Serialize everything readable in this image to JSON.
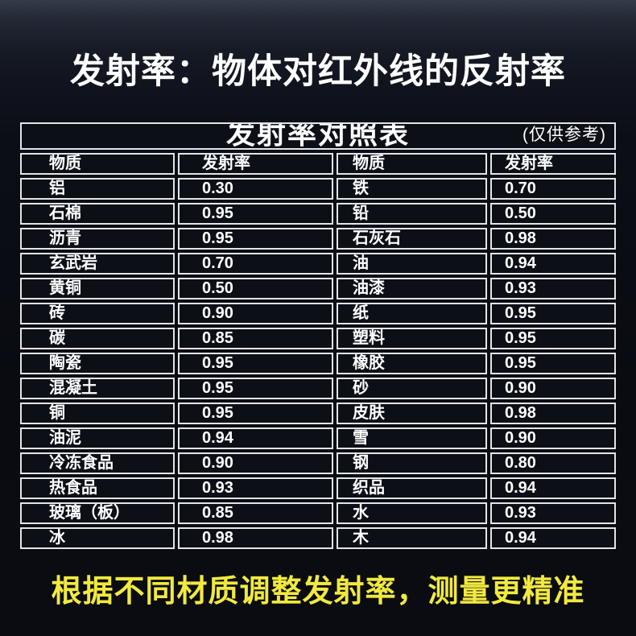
{
  "header": {
    "title": "发射率：物体对红外线的反射率"
  },
  "chart_data": {
    "type": "table",
    "title": "发射率对照表",
    "note": "(仅供参考)",
    "columns": [
      "物质",
      "发射率",
      "物质",
      "发射率"
    ],
    "rows": [
      [
        "铝",
        "0.30",
        "铁",
        "0.70"
      ],
      [
        "石棉",
        "0.95",
        "铅",
        "0.50"
      ],
      [
        "沥青",
        "0.95",
        "石灰石",
        "0.98"
      ],
      [
        "玄武岩",
        "0.70",
        "油",
        "0.94"
      ],
      [
        "黄铜",
        "0.50",
        "油漆",
        "0.93"
      ],
      [
        "砖",
        "0.90",
        "纸",
        "0.95"
      ],
      [
        "碳",
        "0.85",
        "塑料",
        "0.95"
      ],
      [
        "陶瓷",
        "0.95",
        "橡胶",
        "0.95"
      ],
      [
        "混凝土",
        "0.95",
        "砂",
        "0.90"
      ],
      [
        "铜",
        "0.95",
        "皮肤",
        "0.98"
      ],
      [
        "油泥",
        "0.94",
        "雪",
        "0.90"
      ],
      [
        "冷冻食品",
        "0.90",
        "钢",
        "0.80"
      ],
      [
        "热食品",
        "0.93",
        "织品",
        "0.94"
      ],
      [
        "玻璃（板）",
        "0.85",
        "水",
        "0.93"
      ],
      [
        "冰",
        "0.98",
        "木",
        "0.94"
      ]
    ]
  },
  "footer": {
    "text": "根据不同材质调整发射率，测量更精准"
  },
  "colors": {
    "background_top": "#353b49",
    "background_bottom": "#0a0c12",
    "cell_background": "#0d0f17",
    "table_border": "#e2e4e8",
    "text_white": "#ffffff",
    "accent_yellow": "#f2e93f"
  }
}
